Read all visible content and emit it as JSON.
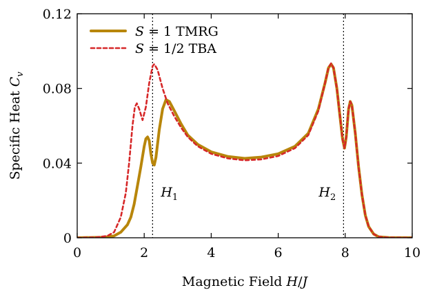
{
  "chart_data": {
    "type": "line",
    "xlabel": "Magnetic Field H/J",
    "ylabel": "Specific Heat Cv",
    "xlim": [
      0,
      10
    ],
    "ylim": [
      0,
      0.12
    ],
    "xticks": [
      "0",
      "2",
      "4",
      "6",
      "8",
      "10"
    ],
    "yticks": [
      "0",
      "0.04",
      "0.08",
      "0.12"
    ],
    "legend_position": "top-left",
    "grid": false,
    "series": [
      {
        "name": "S = 1 TMRG",
        "color": "#b8860b",
        "style": "solid",
        "points": [
          [
            0,
            0
          ],
          [
            0.8,
            0.0003
          ],
          [
            1.1,
            0.001
          ],
          [
            1.3,
            0.003
          ],
          [
            1.5,
            0.007
          ],
          [
            1.6,
            0.011
          ],
          [
            1.7,
            0.018
          ],
          [
            1.8,
            0.028
          ],
          [
            1.9,
            0.038
          ],
          [
            2.0,
            0.049
          ],
          [
            2.05,
            0.053
          ],
          [
            2.1,
            0.054
          ],
          [
            2.15,
            0.052
          ],
          [
            2.2,
            0.045
          ],
          [
            2.25,
            0.04
          ],
          [
            2.3,
            0.039
          ],
          [
            2.35,
            0.043
          ],
          [
            2.45,
            0.058
          ],
          [
            2.55,
            0.069
          ],
          [
            2.65,
            0.074
          ],
          [
            2.75,
            0.073
          ],
          [
            2.9,
            0.068
          ],
          [
            3.1,
            0.061
          ],
          [
            3.3,
            0.055
          ],
          [
            3.6,
            0.05
          ],
          [
            4.0,
            0.046
          ],
          [
            4.5,
            0.0435
          ],
          [
            5.0,
            0.0425
          ],
          [
            5.5,
            0.0432
          ],
          [
            6.0,
            0.045
          ],
          [
            6.5,
            0.049
          ],
          [
            6.9,
            0.056
          ],
          [
            7.2,
            0.069
          ],
          [
            7.4,
            0.083
          ],
          [
            7.5,
            0.091
          ],
          [
            7.58,
            0.093
          ],
          [
            7.65,
            0.091
          ],
          [
            7.75,
            0.08
          ],
          [
            7.85,
            0.064
          ],
          [
            7.92,
            0.053
          ],
          [
            7.98,
            0.048
          ],
          [
            8.03,
            0.054
          ],
          [
            8.1,
            0.069
          ],
          [
            8.15,
            0.073
          ],
          [
            8.2,
            0.071
          ],
          [
            8.3,
            0.056
          ],
          [
            8.4,
            0.038
          ],
          [
            8.5,
            0.023
          ],
          [
            8.6,
            0.012
          ],
          [
            8.7,
            0.006
          ],
          [
            8.85,
            0.002
          ],
          [
            9.0,
            0.0005
          ],
          [
            9.3,
            0.0001
          ],
          [
            10,
            0
          ]
        ]
      },
      {
        "name": "S = 1/2 TBA",
        "color": "#d62728",
        "style": "dashed",
        "points": [
          [
            0,
            0
          ],
          [
            0.6,
            0.0003
          ],
          [
            0.9,
            0.001
          ],
          [
            1.1,
            0.003
          ],
          [
            1.3,
            0.011
          ],
          [
            1.45,
            0.024
          ],
          [
            1.55,
            0.04
          ],
          [
            1.65,
            0.06
          ],
          [
            1.72,
            0.07
          ],
          [
            1.78,
            0.072
          ],
          [
            1.85,
            0.069
          ],
          [
            1.95,
            0.063
          ],
          [
            2.05,
            0.07
          ],
          [
            2.15,
            0.083
          ],
          [
            2.25,
            0.092
          ],
          [
            2.3,
            0.093
          ],
          [
            2.4,
            0.09
          ],
          [
            2.55,
            0.08
          ],
          [
            2.7,
            0.072
          ],
          [
            2.9,
            0.065
          ],
          [
            3.1,
            0.059
          ],
          [
            3.3,
            0.054
          ],
          [
            3.6,
            0.049
          ],
          [
            4.0,
            0.045
          ],
          [
            4.5,
            0.0425
          ],
          [
            5.0,
            0.0415
          ],
          [
            5.5,
            0.042
          ],
          [
            6.0,
            0.0438
          ],
          [
            6.5,
            0.048
          ],
          [
            6.9,
            0.055
          ],
          [
            7.2,
            0.068
          ],
          [
            7.4,
            0.083
          ],
          [
            7.5,
            0.091
          ],
          [
            7.58,
            0.0935
          ],
          [
            7.65,
            0.091
          ],
          [
            7.75,
            0.08
          ],
          [
            7.85,
            0.064
          ],
          [
            7.92,
            0.053
          ],
          [
            7.98,
            0.048
          ],
          [
            8.03,
            0.054
          ],
          [
            8.1,
            0.069
          ],
          [
            8.15,
            0.073
          ],
          [
            8.2,
            0.071
          ],
          [
            8.3,
            0.056
          ],
          [
            8.4,
            0.038
          ],
          [
            8.5,
            0.023
          ],
          [
            8.6,
            0.012
          ],
          [
            8.7,
            0.006
          ],
          [
            8.85,
            0.002
          ],
          [
            9.0,
            0.0005
          ],
          [
            9.3,
            0.0001
          ],
          [
            10,
            0
          ]
        ]
      }
    ],
    "vlines": [
      {
        "x": 2.25,
        "label": "H1",
        "label_y": 0.022
      },
      {
        "x": 7.95,
        "label": "H2",
        "label_y": 0.022
      }
    ]
  }
}
